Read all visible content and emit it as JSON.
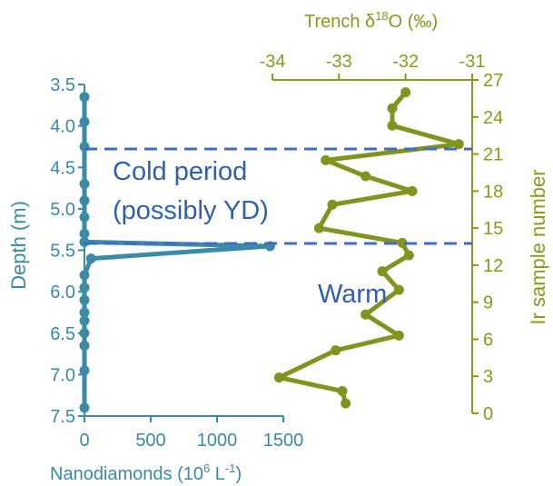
{
  "chart_data": [
    {
      "type": "line",
      "series": [
        {
          "name": "Nanodiamonds",
          "x": [
            0,
            0,
            0,
            0,
            0,
            0,
            0,
            0,
            1400,
            50,
            0,
            0,
            0,
            0,
            0,
            0,
            0,
            0,
            0
          ],
          "y": [
            3.65,
            3.95,
            4.25,
            4.7,
            4.9,
            5.1,
            5.3,
            5.4,
            5.45,
            5.6,
            5.8,
            5.95,
            6.1,
            6.25,
            6.35,
            6.5,
            6.65,
            6.95,
            7.4
          ]
        }
      ],
      "xlabel": "Nanodiamonds (10",
      "xlabel_sup": "6",
      "xlabel_unit": " L",
      "xlabel_sup2": "-1",
      "xlabel_close": ")",
      "ylabel": "Depth (m)",
      "xlim": [
        0,
        1500
      ],
      "ylim": [
        7.5,
        3.5
      ],
      "xticks": [
        "0",
        "500",
        "1000",
        "1500"
      ],
      "yticks": [
        "3.5",
        "4.0",
        "4.5",
        "5.0",
        "5.5",
        "6.0",
        "6.5",
        "7.0",
        "7.5"
      ],
      "color": "#3b8aa6"
    },
    {
      "type": "line",
      "series": [
        {
          "name": "Trench δ18O",
          "x": [
            -32,
            -32.2,
            -32.2,
            -31.2,
            -33.2,
            -32.6,
            -31.9,
            -33.1,
            -33.3,
            -32.05,
            -31.95,
            -32.35,
            -32.1,
            -32.6,
            -32.1,
            -33.05,
            -33.9,
            -32.95,
            -32.9
          ],
          "y": [
            26,
            24.7,
            23.3,
            21.8,
            20.5,
            19.2,
            18,
            16.9,
            15,
            13.8,
            12.8,
            11.5,
            10,
            8,
            6.3,
            5.1,
            2.9,
            1.8,
            0.8
          ]
        }
      ],
      "xlabel": "Trench δ",
      "xlabel_sup": "18",
      "xlabel_rest": "O (‰)",
      "ylabel": "Ir sample number",
      "xlim": [
        -34,
        -31
      ],
      "ylim": [
        0,
        27
      ],
      "xticks": [
        "-34",
        "-33",
        "-32",
        "-31"
      ],
      "yticks": [
        "0",
        "3",
        "6",
        "9",
        "12",
        "15",
        "18",
        "21",
        "24",
        "27"
      ],
      "color": "#7f9520"
    }
  ],
  "annotations": {
    "cold_line1": "Cold period",
    "cold_line2": "(possibly YD)",
    "warm": "Warm"
  },
  "colors": {
    "nanodiamonds": "#3b8aa6",
    "oxygen": "#7f9520",
    "dashed": "#3f6cc4",
    "annotation": "#2f5fb3"
  }
}
